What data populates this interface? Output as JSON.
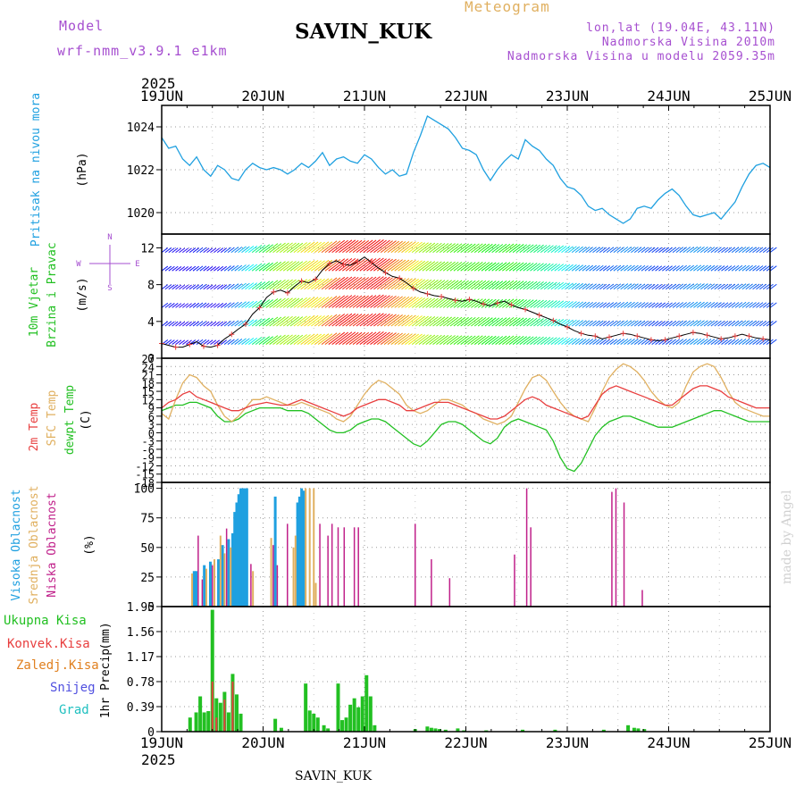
{
  "header": {
    "title": "SAVIN_KUK",
    "subtitle": "Meteogram",
    "model_label": "Model",
    "model_name": "wrf-nmm_v3.9.1 e1km",
    "coords": "lon,lat (19.04E, 43.11N)",
    "elevation": "Nadmorska Visina 2010m",
    "model_elevation": "Nadmorska Visina u modelu 2059.35m",
    "footer": "SAVIN_KUK",
    "credit": "made by Angel"
  },
  "colors": {
    "pressure": "#1fa0e0",
    "t2m": "#e83e3e",
    "sfc": "#e0b060",
    "dewpt": "#22c022",
    "high_cloud": "#1fa0e0",
    "mid_cloud": "#e0b060",
    "low_cloud": "#c0208a",
    "precip_total": "#22c022",
    "precip_conv": "#e83e3e",
    "precip_frozen": "#e08020",
    "snow": "#5050e0",
    "hail": "#20c0c0"
  },
  "chart_data": {
    "type": "line",
    "year": "2025",
    "x_dates": [
      "19JUN",
      "20JUN",
      "21JUN",
      "22JUN",
      "23JUN",
      "24JUN",
      "25JUN"
    ],
    "panels": {
      "pressure": {
        "label": "Pritisak na nivou mora",
        "unit": "(hPa)",
        "ylim": [
          1019,
          1025
        ],
        "ticks": [
          1020,
          1022,
          1024
        ],
        "values": [
          1023.5,
          1023,
          1023.1,
          1022.5,
          1022.2,
          1022.6,
          1022,
          1021.7,
          1022.2,
          1022,
          1021.6,
          1021.5,
          1022,
          1022.3,
          1022.1,
          1022,
          1022.1,
          1022,
          1021.8,
          1022,
          1022.3,
          1022.1,
          1022.4,
          1022.8,
          1022.2,
          1022.5,
          1022.6,
          1022.4,
          1022.3,
          1022.7,
          1022.5,
          1022.1,
          1021.8,
          1022,
          1021.7,
          1021.8,
          1022.8,
          1023.6,
          1024.5,
          1024.3,
          1024.1,
          1023.9,
          1023.5,
          1023,
          1022.9,
          1022.7,
          1022,
          1021.5,
          1022,
          1022.4,
          1022.7,
          1022.5,
          1023.4,
          1023.1,
          1022.9,
          1022.5,
          1022.2,
          1021.6,
          1021.2,
          1021.1,
          1020.8,
          1020.3,
          1020.1,
          1020.2,
          1019.9,
          1019.7,
          1019.5,
          1019.7,
          1020.2,
          1020.3,
          1020.2,
          1020.6,
          1020.9,
          1021.1,
          1020.8,
          1020.3,
          1019.9,
          1019.8,
          1019.9,
          1020,
          1019.7,
          1020.1,
          1020.5,
          1021.2,
          1021.8,
          1022.2,
          1022.3,
          1022.1
        ]
      },
      "wind": {
        "label_a": "10m Vjetar",
        "label_b": "Brzina i Pravac",
        "unit": "(m/s)",
        "compass": [
          "N",
          "W",
          "E",
          "S"
        ],
        "ylim": [
          0,
          13.5
        ],
        "ticks": [
          0,
          4,
          8,
          12
        ],
        "speed": [
          1.6,
          1.4,
          1.2,
          1.2,
          1.5,
          1.8,
          1.3,
          1.2,
          1.4,
          2.1,
          2.6,
          3.2,
          3.7,
          4.8,
          5.5,
          6.6,
          7.2,
          7.4,
          7.1,
          7.8,
          8.4,
          8.2,
          8.6,
          9.6,
          10.3,
          10.6,
          10.2,
          10.1,
          10.5,
          11,
          10.4,
          9.8,
          9.3,
          8.9,
          8.7,
          8.2,
          7.6,
          7.2,
          7,
          6.8,
          6.7,
          6.5,
          6.3,
          6.2,
          6.4,
          6.2,
          5.9,
          5.7,
          6,
          6.2,
          5.8,
          5.5,
          5.3,
          5,
          4.7,
          4.4,
          4.1,
          3.7,
          3.4,
          3,
          2.7,
          2.5,
          2.4,
          2.1,
          2.3,
          2.5,
          2.7,
          2.6,
          2.4,
          2.2,
          2,
          1.9,
          2,
          2.2,
          2.4,
          2.6,
          2.8,
          2.7,
          2.5,
          2.3,
          2.1,
          2.2,
          2.4,
          2.6,
          2.4,
          2.2,
          2.1,
          2
        ]
      },
      "temperature": {
        "label_a": "2m Temp",
        "label_b": "SFC Temp",
        "label_c": "dewpt Temp",
        "unit": "(C)",
        "ylim": [
          -18,
          27
        ],
        "ticks": [
          -18,
          -15,
          -12,
          -9,
          -6,
          -3,
          0,
          3,
          6,
          9,
          12,
          15,
          18,
          21,
          24,
          27
        ],
        "t2m": [
          9,
          11,
          12,
          14,
          15,
          13,
          12,
          11,
          10,
          9,
          8,
          8,
          9,
          10,
          10.5,
          11,
          10.5,
          10,
          10,
          11,
          12,
          11,
          10,
          9,
          8,
          7,
          6,
          7,
          9,
          10,
          11,
          12,
          12,
          11,
          10,
          8,
          8,
          9,
          10,
          11,
          11,
          11,
          10,
          9,
          8,
          7,
          6,
          5,
          5,
          6,
          8,
          10,
          12,
          13,
          12,
          10,
          9,
          8,
          7,
          6,
          5,
          6,
          10,
          14,
          16,
          17,
          16,
          15,
          14,
          13,
          12,
          11,
          10,
          10,
          12,
          14,
          16,
          17,
          17,
          16,
          15,
          13,
          12,
          11,
          10,
          9,
          9,
          9
        ],
        "sfc": [
          7,
          5,
          12,
          18,
          21,
          20,
          17,
          15,
          10,
          6,
          4,
          6,
          9,
          12,
          12,
          13,
          12,
          11,
          10,
          10,
          11,
          10,
          9,
          8,
          7,
          5,
          4,
          6,
          10,
          14,
          17,
          19,
          18,
          16,
          14,
          10,
          8,
          7,
          8,
          10,
          12,
          12,
          11,
          10,
          8,
          7,
          5,
          4,
          3,
          4,
          6,
          11,
          16,
          20,
          21,
          19,
          15,
          11,
          8,
          6,
          5,
          4,
          9,
          15,
          20,
          23,
          25,
          24,
          22,
          19,
          15,
          12,
          10,
          9,
          11,
          17,
          22,
          24,
          25,
          24,
          20,
          15,
          11,
          9,
          8,
          7,
          6,
          6
        ],
        "dewpt": [
          8,
          9,
          10,
          10,
          11,
          11,
          10,
          9,
          6,
          4,
          4,
          5,
          7,
          8,
          9,
          9,
          9,
          9,
          8,
          8,
          8,
          7,
          5,
          3,
          1,
          0,
          0,
          1,
          3,
          4,
          5,
          5,
          4,
          2,
          0,
          -2,
          -4,
          -5,
          -3,
          0,
          3,
          4,
          4,
          3,
          1,
          -1,
          -3,
          -4,
          -2,
          2,
          4,
          5,
          4,
          3,
          2,
          1,
          -3,
          -9,
          -13,
          -14,
          -11,
          -6,
          -1,
          2,
          4,
          5,
          6,
          6,
          5,
          4,
          3,
          2,
          2,
          2,
          3,
          4,
          5,
          6,
          7,
          8,
          8,
          7,
          6,
          5,
          4,
          4,
          4,
          4
        ]
      },
      "cloud": {
        "label_a": "Visoka Oblacnost",
        "label_b": "Srednja Oblacnost",
        "label_c": "Niska Oblacnost",
        "unit": "(%)",
        "ylim": [
          0,
          105
        ],
        "ticks": [
          0,
          25,
          50,
          75,
          100
        ],
        "high": [
          [
            0.32,
            30
          ],
          [
            0.34,
            30
          ],
          [
            0.42,
            35
          ],
          [
            0.48,
            38
          ],
          [
            0.56,
            40
          ],
          [
            0.6,
            52
          ],
          [
            0.66,
            57
          ],
          [
            0.7,
            62
          ],
          [
            0.72,
            80
          ],
          [
            0.74,
            88
          ],
          [
            0.76,
            95
          ],
          [
            0.78,
            100
          ],
          [
            0.8,
            100
          ],
          [
            0.82,
            100
          ],
          [
            0.84,
            100
          ],
          [
            1.12,
            93
          ],
          [
            1.34,
            88
          ],
          [
            1.36,
            93
          ],
          [
            1.38,
            100
          ],
          [
            1.4,
            98
          ]
        ],
        "mid": [
          [
            0.3,
            28
          ],
          [
            0.44,
            32
          ],
          [
            0.52,
            40
          ],
          [
            0.58,
            60
          ],
          [
            0.62,
            45
          ],
          [
            0.68,
            50
          ],
          [
            0.9,
            30
          ],
          [
            1.08,
            58
          ],
          [
            1.3,
            50
          ],
          [
            1.32,
            60
          ],
          [
            1.42,
            100
          ],
          [
            1.46,
            100
          ],
          [
            1.5,
            100
          ],
          [
            1.52,
            20
          ]
        ],
        "low": [
          [
            0.36,
            60
          ],
          [
            0.4,
            23
          ],
          [
            0.5,
            35
          ],
          [
            0.64,
            66
          ],
          [
            0.88,
            36
          ],
          [
            1.1,
            52
          ],
          [
            1.14,
            35
          ],
          [
            1.24,
            70
          ],
          [
            1.56,
            70
          ],
          [
            1.64,
            60
          ],
          [
            1.68,
            70
          ],
          [
            1.74,
            67
          ],
          [
            1.8,
            67
          ],
          [
            1.9,
            67
          ],
          [
            1.94,
            67
          ],
          [
            2.5,
            70
          ],
          [
            2.66,
            40
          ],
          [
            2.84,
            24
          ],
          [
            3.48,
            44
          ],
          [
            3.6,
            100
          ],
          [
            3.64,
            67
          ],
          [
            4.44,
            97
          ],
          [
            4.48,
            100
          ],
          [
            4.56,
            88
          ],
          [
            4.74,
            14
          ]
        ]
      },
      "precip": {
        "label_a": "Ukupna Kisa",
        "label_b": "Konvek.Kisa",
        "label_c": "Zaledj.Kisa",
        "label_d": "Snijeg",
        "label_e": "Grad",
        "label_f": "1hr Precip",
        "label_g": "(mm)",
        "ylim": [
          0,
          1.95
        ],
        "ticks": [
          "0",
          "0.39",
          "0.78",
          "1.17",
          "1.56",
          "1.95"
        ],
        "total": [
          [
            0.28,
            0.22
          ],
          [
            0.34,
            0.3
          ],
          [
            0.38,
            0.55
          ],
          [
            0.42,
            0.3
          ],
          [
            0.46,
            0.32
          ],
          [
            0.5,
            1.9
          ],
          [
            0.54,
            0.52
          ],
          [
            0.58,
            0.45
          ],
          [
            0.62,
            0.62
          ],
          [
            0.66,
            0.3
          ],
          [
            0.7,
            0.9
          ],
          [
            0.74,
            0.58
          ],
          [
            0.78,
            0.28
          ],
          [
            1.12,
            0.2
          ],
          [
            1.18,
            0.06
          ],
          [
            1.42,
            0.75
          ],
          [
            1.46,
            0.33
          ],
          [
            1.5,
            0.28
          ],
          [
            1.54,
            0.22
          ],
          [
            1.6,
            0.1
          ],
          [
            1.64,
            0.05
          ],
          [
            1.74,
            0.75
          ],
          [
            1.78,
            0.18
          ],
          [
            1.82,
            0.22
          ],
          [
            1.86,
            0.42
          ],
          [
            1.9,
            0.52
          ],
          [
            1.94,
            0.38
          ],
          [
            1.98,
            0.55
          ],
          [
            2.02,
            0.88
          ],
          [
            2.06,
            0.55
          ],
          [
            2.1,
            0.1
          ],
          [
            2.5,
            0.04
          ],
          [
            2.62,
            0.08
          ],
          [
            2.66,
            0.06
          ],
          [
            2.7,
            0.05
          ],
          [
            2.74,
            0.04
          ],
          [
            2.8,
            0.03
          ],
          [
            2.92,
            0.05
          ],
          [
            2.98,
            0.02
          ],
          [
            3.2,
            0.02
          ],
          [
            3.56,
            0.03
          ],
          [
            3.88,
            0.03
          ],
          [
            4.36,
            0.03
          ],
          [
            4.6,
            0.1
          ],
          [
            4.66,
            0.06
          ],
          [
            4.7,
            0.05
          ],
          [
            4.76,
            0.04
          ]
        ],
        "convective": [
          [
            0.5,
            0.78
          ],
          [
            0.54,
            0.22
          ],
          [
            0.62,
            0.5
          ],
          [
            0.7,
            0.78
          ]
        ]
      }
    }
  }
}
